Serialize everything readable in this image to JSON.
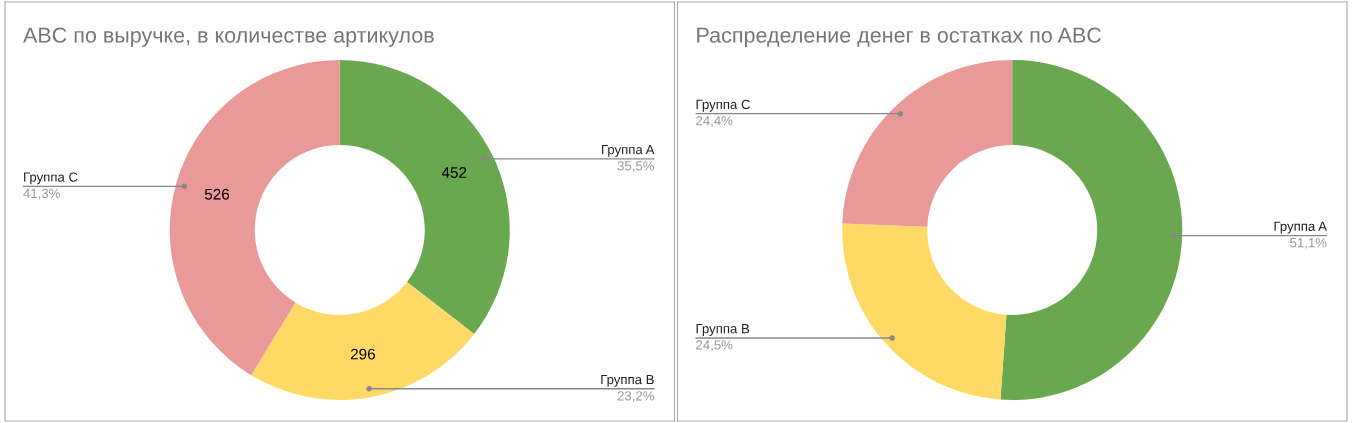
{
  "chart_data": [
    {
      "type": "donut",
      "title": "ABC по выручке, в количестве артикулов",
      "categories": [
        "Группа A",
        "Группа B",
        "Группа C"
      ],
      "values": [
        452,
        296,
        526
      ],
      "colors": [
        "#6aa84f",
        "#ffd966",
        "#ea9999"
      ],
      "value_labels": [
        "452",
        "296",
        "526"
      ],
      "annotations": [
        {
          "text": "35,5%",
          "x": "Группа A"
        },
        {
          "text": "23,2%",
          "x": "Группа B"
        },
        {
          "text": "41,3%",
          "x": "Группа C"
        }
      ]
    },
    {
      "type": "donut",
      "title": "Распределение денег в остатках по ABC",
      "categories": [
        "Группа A",
        "Группа B",
        "Группа C"
      ],
      "values": [
        51.1,
        24.5,
        24.4
      ],
      "colors": [
        "#6aa84f",
        "#ffd966",
        "#ea9999"
      ],
      "value_labels": [
        "51,1%",
        "24,5%",
        "24,4%"
      ]
    }
  ]
}
